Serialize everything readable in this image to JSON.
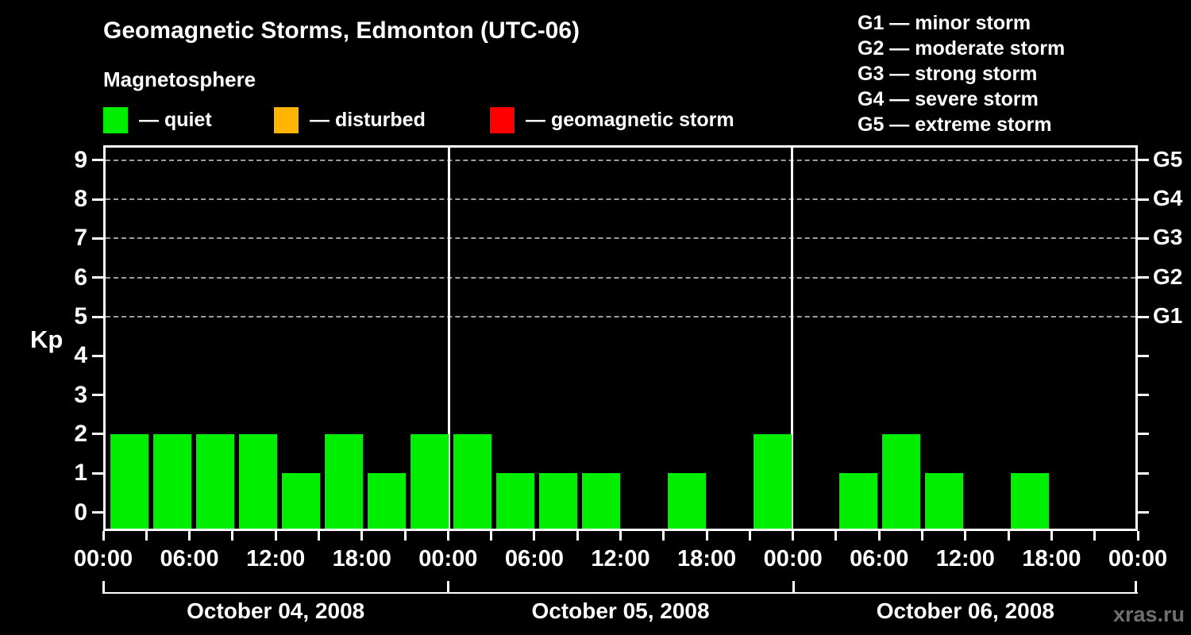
{
  "header": {
    "title": "Geomagnetic Storms, Edmonton (UTC-06)",
    "subtitle": "Magnetosphere"
  },
  "legend": {
    "items": [
      {
        "name": "quiet",
        "label": "— quiet",
        "color": "#00ee00"
      },
      {
        "name": "disturbed",
        "label": "— disturbed",
        "color": "#ffb400"
      },
      {
        "name": "geomagnetic-storm",
        "label": "— geomagnetic storm",
        "color": "#ff0000"
      }
    ]
  },
  "storm_scale_legend": {
    "lines": [
      "G1 — minor storm",
      "G2 — moderate storm",
      "G3 — strong storm",
      "G4 — severe storm",
      "G5 — extreme storm"
    ]
  },
  "watermark": "xras.ru",
  "colors": {
    "background": "#000000",
    "axis": "#ffffff",
    "text": "#ffffff",
    "grid": "#9d9d9d",
    "quiet": "#00ee00",
    "disturbed": "#ffb400",
    "storm": "#ff0000",
    "watermark": "#6f6f6f"
  },
  "chart_data": {
    "type": "bar",
    "title": "Geomagnetic Storms, Edmonton (UTC-06)",
    "subtitle": "Magnetosphere",
    "ylabel": "Kp",
    "ylim": [
      0,
      9.85
    ],
    "y_ticks": [
      0,
      1,
      2,
      3,
      4,
      5,
      6,
      7,
      8,
      9
    ],
    "grid_levels_kp": [
      5,
      6,
      7,
      8,
      9
    ],
    "grid": "dashed horizontal at Kp 5-9",
    "legend_position": "top",
    "right_axis_labels": [
      {
        "kp": 5,
        "label": "G1"
      },
      {
        "kp": 6,
        "label": "G2"
      },
      {
        "kp": 7,
        "label": "G3"
      },
      {
        "kp": 8,
        "label": "G4"
      },
      {
        "kp": 9,
        "label": "G5"
      }
    ],
    "x_tick_labels_every_6h": [
      "00:00",
      "06:00",
      "12:00",
      "18:00",
      "00:00",
      "06:00",
      "12:00",
      "18:00",
      "00:00",
      "06:00",
      "12:00",
      "18:00",
      "00:00"
    ],
    "hours_per_bar": 3,
    "bars_per_day": 8,
    "days": [
      {
        "date": "October 04, 2008",
        "kp_values": [
          2,
          2,
          2,
          2,
          1,
          2,
          1,
          2
        ]
      },
      {
        "date": "October 05, 2008",
        "kp_values": [
          2,
          1,
          1,
          1,
          0,
          1,
          0,
          2
        ]
      },
      {
        "date": "October 06, 2008",
        "kp_values": [
          0,
          1,
          2,
          1,
          0,
          1,
          0,
          0
        ]
      }
    ],
    "series_status": "all values in quiet range (green)"
  }
}
